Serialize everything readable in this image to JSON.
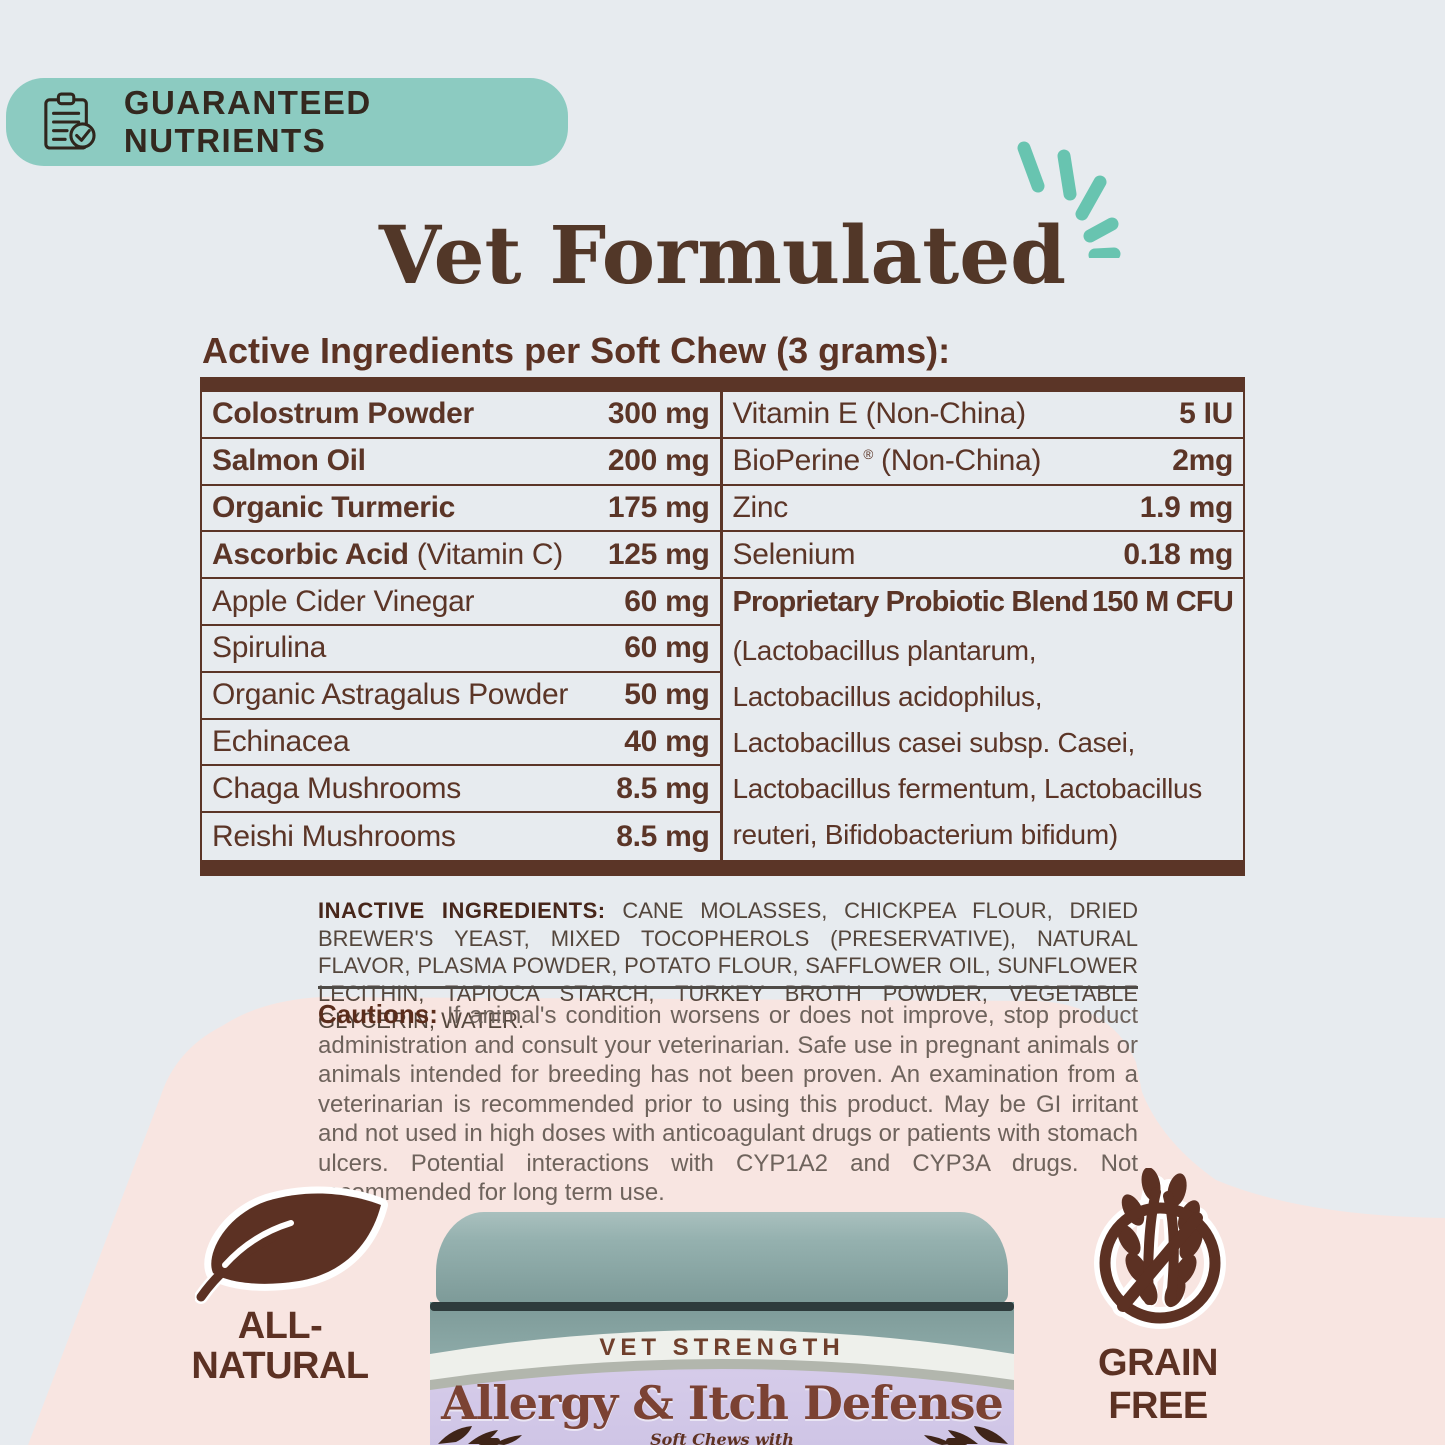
{
  "badge": {
    "label": "GUARANTEED NUTRIENTS"
  },
  "title": "Vet Formulated",
  "table": {
    "heading": "Active Ingredients per Soft Chew (3 grams):",
    "left_rows": [
      {
        "name": "Colostrum Powder",
        "suffix": "",
        "value": "300 mg",
        "strong": true
      },
      {
        "name": "Salmon Oil",
        "suffix": "",
        "value": "200 mg",
        "strong": true
      },
      {
        "name": "Organic Turmeric",
        "suffix": "",
        "value": "175 mg",
        "strong": true
      },
      {
        "name": "Ascorbic Acid",
        "suffix": " (Vitamin C)",
        "value": "125 mg",
        "strong": true
      },
      {
        "name": "Apple Cider Vinegar",
        "suffix": "",
        "value": "60 mg",
        "strong": false
      },
      {
        "name": "Spirulina",
        "suffix": "",
        "value": "60 mg",
        "strong": false
      },
      {
        "name": "Organic Astragalus Powder",
        "suffix": "",
        "value": "50 mg",
        "strong": false
      },
      {
        "name": "Echinacea",
        "suffix": "",
        "value": "40 mg",
        "strong": false
      },
      {
        "name": "Chaga Mushrooms",
        "suffix": "",
        "value": "8.5 mg",
        "strong": false
      },
      {
        "name": "Reishi Mushrooms",
        "suffix": "",
        "value": "8.5 mg",
        "strong": false
      }
    ],
    "right_rows": [
      {
        "name": "Vitamin E (Non-China)",
        "suffix": "",
        "value": "5 IU",
        "strong": false
      },
      {
        "name": "BioPerine",
        "sup": "®",
        "suffix": " (Non-China)",
        "value": "2mg",
        "strong": false
      },
      {
        "name": "Zinc",
        "suffix": "",
        "value": "1.9 mg",
        "strong": false
      },
      {
        "name": "Selenium",
        "suffix": "",
        "value": "0.18 mg",
        "strong": false
      },
      {
        "name": "Proprietary Probiotic Blend",
        "suffix": "",
        "value": "150 M CFU",
        "strong": true,
        "tight": true,
        "no_border": true
      }
    ],
    "probiotic_lines": [
      "(Lactobacillus plantarum,",
      "Lactobacillus acidophilus,",
      "Lactobacillus casei subsp. Casei,",
      "Lactobacillus fermentum, Lactobacillus",
      "reuteri, Bifidobacterium bifidum)"
    ]
  },
  "inactive": {
    "label": "INACTIVE INGREDIENTS:",
    "text": " CANE MOLASSES, CHICKPEA FLOUR, DRIED BREWER'S YEAST, MIXED TOCOPHEROLS (PRESERVATIVE), NATURAL FLAVOR, PLASMA POWDER, POTATO FLOUR, SAFFLOWER OIL, SUNFLOWER LECITHIN, TAPIOCA STARCH, TURKEY BROTH POWDER, VEGETABLE GLYCERIN, WATER."
  },
  "cautions": {
    "label": "Cautions:",
    "text": " If animal's condition worsens or does not improve, stop product administration and consult your veterinarian. Safe use in pregnant animals or animals intended for breeding has not been proven. An examination from a veterinarian is recommended prior to using this product. May be GI irritant and not used in high doses with anticoagulant drugs or patients with stomach ulcers. Potential interactions with CYP1A2 and CYP3A drugs. Not recommended for long term use."
  },
  "bottom_badges": {
    "all_natural_line1": "ALL-",
    "all_natural_line2": "NATURAL",
    "grain_free": "GRAIN FREE"
  },
  "jar": {
    "strength": "VET STRENGTH",
    "product_name": "Allergy & Itch Defense",
    "subtitle": "Soft Chews with"
  },
  "colors": {
    "background": "#e7ebef",
    "pink": "#f8e5e1",
    "badge_teal": "#8ccbc1",
    "dash_teal": "#68c4b0",
    "table_brown": "#5b3527",
    "title_brown": "#523728",
    "lid_sage": "#8fabaa",
    "label_lavender": "#d2c8e6",
    "band_white": "#eef0eb"
  }
}
